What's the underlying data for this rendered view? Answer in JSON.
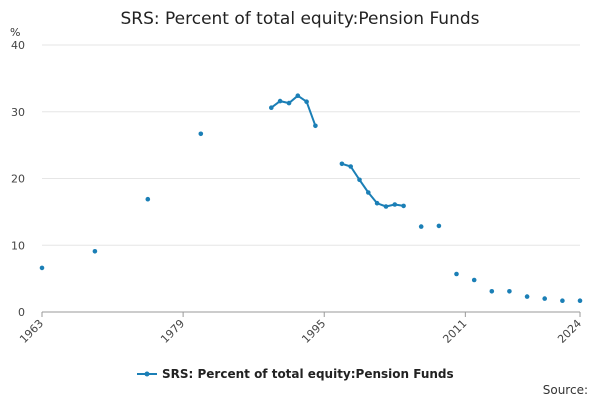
{
  "chart_data": {
    "type": "line",
    "title": "SRS: Percent of total equity:Pension Funds",
    "ylabel": "%",
    "xlabel": "",
    "ylim": [
      0,
      40
    ],
    "yticks": [
      0,
      10,
      20,
      30,
      40
    ],
    "xlim": [
      1963,
      2024
    ],
    "xticks": [
      1963,
      1979,
      1995,
      2011,
      2024
    ],
    "grid": true,
    "legend_position": "bottom",
    "series": [
      {
        "name": "SRS: Percent of total equity:Pension Funds",
        "color": "#1b7fb6",
        "points": [
          [
            1963,
            6.6
          ],
          [
            1969,
            9.1
          ],
          [
            1975,
            16.9
          ],
          [
            1981,
            26.7
          ],
          [
            1989,
            30.6
          ],
          [
            1990,
            31.6
          ],
          [
            1991,
            31.3
          ],
          [
            1992,
            32.4
          ],
          [
            1993,
            31.5
          ],
          [
            1994,
            27.9
          ],
          [
            1997,
            22.2
          ],
          [
            1998,
            21.8
          ],
          [
            1999,
            19.8
          ],
          [
            2000,
            17.9
          ],
          [
            2001,
            16.3
          ],
          [
            2002,
            15.8
          ],
          [
            2003,
            16.1
          ],
          [
            2004,
            15.9
          ],
          [
            2006,
            12.8
          ],
          [
            2008,
            12.9
          ],
          [
            2010,
            5.7
          ],
          [
            2012,
            4.8
          ],
          [
            2014,
            3.1
          ],
          [
            2016,
            3.1
          ],
          [
            2018,
            2.3
          ],
          [
            2020,
            2.0
          ],
          [
            2022,
            1.7
          ],
          [
            2024,
            1.7
          ]
        ]
      }
    ]
  },
  "footer": {
    "source_label": "Source:"
  }
}
